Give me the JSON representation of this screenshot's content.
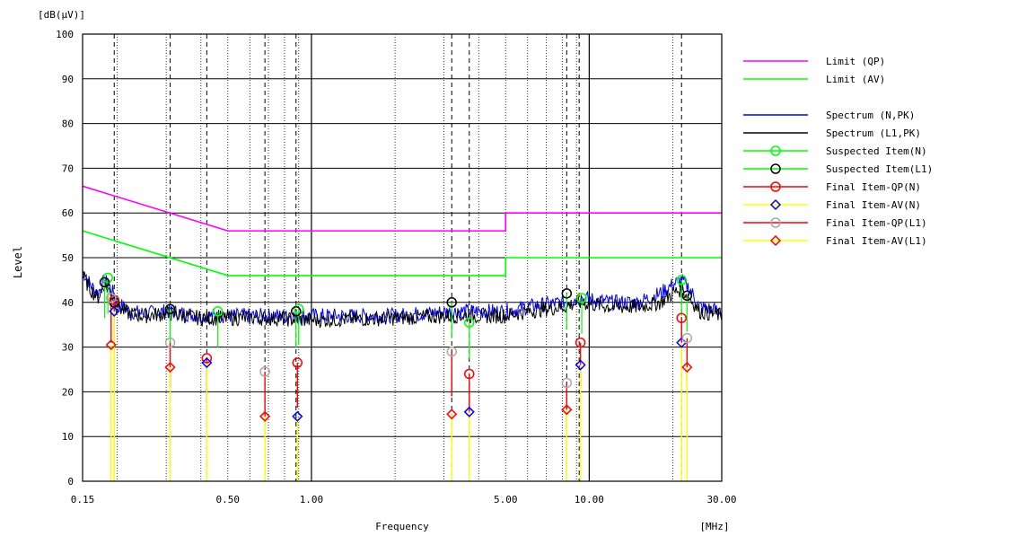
{
  "chart_data": {
    "type": "line",
    "y_unit_label": "[dB(μV)]",
    "xlabel": "Frequency",
    "x_unit_label": "[MHz]",
    "ylabel": "Level",
    "xscale": "log",
    "xlim": [
      0.15,
      30
    ],
    "ylim": [
      0,
      100
    ],
    "grid": true,
    "legend_position": "right",
    "x_tick_labels": [
      {
        "v": 0.15,
        "label": "0.15"
      },
      {
        "v": 0.5,
        "label": "0.50"
      },
      {
        "v": 1,
        "label": "1.00"
      },
      {
        "v": 5,
        "label": "5.00"
      },
      {
        "v": 10,
        "label": "10.00"
      },
      {
        "v": 30,
        "label": "30.00"
      }
    ],
    "y_tick_labels": [
      {
        "v": 0,
        "label": "0"
      },
      {
        "v": 10,
        "label": "10"
      },
      {
        "v": 20,
        "label": "20"
      },
      {
        "v": 30,
        "label": "30"
      },
      {
        "v": 40,
        "label": "40"
      },
      {
        "v": 50,
        "label": "50"
      },
      {
        "v": 60,
        "label": "60"
      },
      {
        "v": 70,
        "label": "70"
      },
      {
        "v": 80,
        "label": "80"
      },
      {
        "v": 90,
        "label": "90"
      },
      {
        "v": 100,
        "label": "100"
      }
    ],
    "dashed_marker_freqs": [
      0.195,
      0.31,
      0.42,
      0.68,
      0.88,
      3.2,
      3.7,
      8.3,
      9.2,
      21.5
    ],
    "limits": [
      {
        "name": "Limit (QP)",
        "color": "#ff00ff",
        "points": [
          [
            0.15,
            66
          ],
          [
            0.5,
            56
          ],
          [
            5,
            56
          ],
          [
            5,
            60
          ],
          [
            30,
            60
          ]
        ]
      },
      {
        "name": "Limit (AV)",
        "color": "#00ff00",
        "points": [
          [
            0.15,
            56
          ],
          [
            0.5,
            46
          ],
          [
            5,
            46
          ],
          [
            5,
            50
          ],
          [
            30,
            50
          ]
        ]
      }
    ],
    "spectrum": [
      {
        "name": "Spectrum (N,PK)",
        "color": "#0000ff",
        "points": [
          [
            0.15,
            47
          ],
          [
            0.16,
            44
          ],
          [
            0.17,
            42
          ],
          [
            0.18,
            45
          ],
          [
            0.19,
            43
          ],
          [
            0.2,
            40
          ],
          [
            0.22,
            38
          ],
          [
            0.25,
            37.5
          ],
          [
            0.3,
            38
          ],
          [
            0.35,
            37.5
          ],
          [
            0.4,
            37
          ],
          [
            0.5,
            37
          ],
          [
            0.7,
            37
          ],
          [
            1,
            37
          ],
          [
            2,
            37
          ],
          [
            3.2,
            38
          ],
          [
            5,
            38
          ],
          [
            6,
            39
          ],
          [
            8,
            40
          ],
          [
            9.2,
            41
          ],
          [
            12,
            40
          ],
          [
            15,
            40
          ],
          [
            18,
            42
          ],
          [
            20,
            44
          ],
          [
            21.5,
            45
          ],
          [
            23,
            43
          ],
          [
            25,
            39
          ],
          [
            30,
            38
          ]
        ]
      },
      {
        "name": "Spectrum (L1,PK)",
        "color": "#000000",
        "points": [
          [
            0.15,
            46
          ],
          [
            0.16,
            43
          ],
          [
            0.17,
            41
          ],
          [
            0.18,
            44
          ],
          [
            0.19,
            42
          ],
          [
            0.2,
            39
          ],
          [
            0.22,
            37.5
          ],
          [
            0.25,
            37
          ],
          [
            0.3,
            37.5
          ],
          [
            0.35,
            37
          ],
          [
            0.4,
            36.5
          ],
          [
            0.5,
            36.5
          ],
          [
            0.7,
            36.5
          ],
          [
            1,
            36
          ],
          [
            2,
            36.5
          ],
          [
            3.2,
            37
          ],
          [
            5,
            37
          ],
          [
            6,
            38
          ],
          [
            8,
            39
          ],
          [
            9.2,
            40
          ],
          [
            12,
            39
          ],
          [
            15,
            39
          ],
          [
            18,
            40
          ],
          [
            20,
            42
          ],
          [
            21.5,
            43
          ],
          [
            23,
            41
          ],
          [
            25,
            38
          ],
          [
            30,
            37
          ]
        ]
      }
    ],
    "suspected_items": [
      {
        "series": "Suspected Item(N)",
        "color": "#00ff00",
        "points": [
          [
            0.185,
            45.5
          ],
          [
            0.31,
            38.5
          ],
          [
            0.46,
            38
          ],
          [
            0.9,
            38.5
          ],
          [
            3.7,
            35.5
          ],
          [
            9.4,
            41
          ],
          [
            21.5,
            45
          ]
        ]
      },
      {
        "series": "Suspected Item(L1)",
        "color": "#000000",
        "points": [
          [
            0.18,
            44.5
          ],
          [
            0.195,
            40
          ],
          [
            0.31,
            38.5
          ],
          [
            0.88,
            38
          ],
          [
            3.2,
            40
          ],
          [
            8.3,
            42
          ],
          [
            22.5,
            41.5
          ]
        ]
      }
    ],
    "final_items": [
      {
        "series": "Final Item-QP(N)",
        "color": "#ff0000",
        "marker": "circle",
        "points": [
          [
            0.195,
            40.5
          ],
          [
            0.42,
            27.5
          ],
          [
            0.89,
            26.5
          ],
          [
            3.7,
            24
          ],
          [
            9.3,
            31
          ],
          [
            21.5,
            36.5
          ]
        ]
      },
      {
        "series": "Final Item-AV(N)",
        "color": "#0000ff",
        "marker": "diamond",
        "points": [
          [
            0.195,
            38
          ],
          [
            0.42,
            26.5
          ],
          [
            0.89,
            14.5
          ],
          [
            3.7,
            15.5
          ],
          [
            9.3,
            26
          ],
          [
            21.5,
            31
          ]
        ]
      },
      {
        "series": "Final Item-QP(L1)",
        "color": "#aaaaaa",
        "marker": "circle",
        "points": [
          [
            0.19,
            41
          ],
          [
            0.31,
            31
          ],
          [
            0.68,
            24.5
          ],
          [
            3.2,
            29
          ],
          [
            8.3,
            22
          ],
          [
            22.5,
            32
          ]
        ]
      },
      {
        "series": "Final Item-AV(L1)",
        "color": "#ff0000",
        "marker": "diamond",
        "points": [
          [
            0.19,
            30.5
          ],
          [
            0.31,
            25.5
          ],
          [
            0.68,
            14.5
          ],
          [
            3.2,
            15
          ],
          [
            8.3,
            16
          ],
          [
            22.5,
            25.5
          ]
        ]
      }
    ],
    "legend": [
      {
        "label": "Limit (QP)",
        "color": "#ff00ff",
        "marker": "none"
      },
      {
        "label": "Limit (AV)",
        "color": "#00ff00",
        "marker": "none"
      },
      {
        "label": "Spectrum (N,PK)",
        "color": "#0000ff",
        "marker": "none"
      },
      {
        "label": "Spectrum (L1,PK)",
        "color": "#000000",
        "marker": "none"
      },
      {
        "label": "Suspected Item(N)",
        "color": "#00ff00",
        "marker": "circle",
        "mcolor": "#00ff00"
      },
      {
        "label": "Suspected Item(L1)",
        "color": "#00ff00",
        "marker": "circle",
        "mcolor": "#000000"
      },
      {
        "label": "Final Item-QP(N)",
        "color": "#ff0000",
        "marker": "circle",
        "mcolor": "#ff0000"
      },
      {
        "label": "Final Item-AV(N)",
        "color": "#ffff00",
        "marker": "diamond",
        "mcolor": "#0000ff"
      },
      {
        "label": "Final Item-QP(L1)",
        "color": "#ff0000",
        "marker": "circle",
        "mcolor": "#aaaaaa"
      },
      {
        "label": "Final Item-AV(L1)",
        "color": "#ffff00",
        "marker": "diamond",
        "mcolor": "#ff0000"
      }
    ]
  }
}
